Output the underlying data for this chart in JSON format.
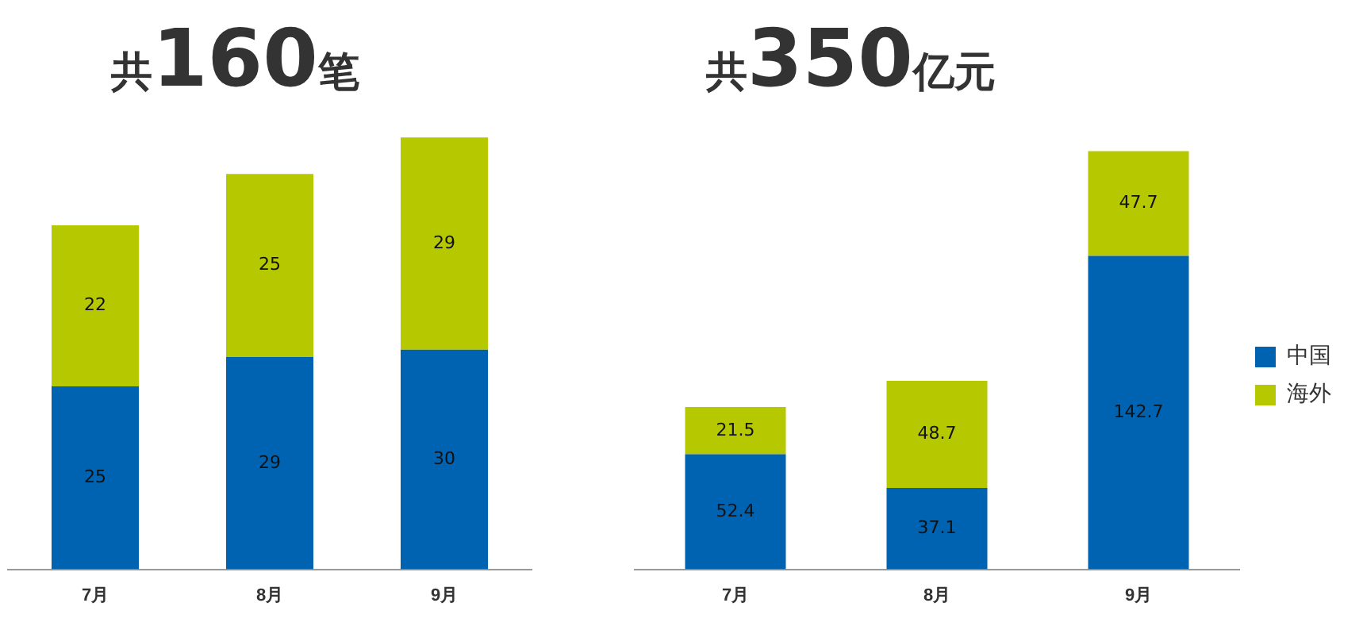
{
  "chart_data": [
    {
      "type": "bar",
      "title": "共160笔",
      "stacked": true,
      "categories": [
        "7月",
        "8月",
        "9月"
      ],
      "tick_labels": "x",
      "data_labels": true,
      "legend": false,
      "series": [
        {
          "color": "#0063b1",
          "values": [
            25,
            29,
            30
          ]
        },
        {
          "color": "#b5c800",
          "values": [
            22,
            25,
            29
          ]
        }
      ]
    },
    {
      "type": "bar",
      "title": "共350亿元",
      "stacked": true,
      "categories": [
        "7月",
        "8月",
        "9月"
      ],
      "tick_labels": "x",
      "data_labels": true,
      "legend": "right",
      "series": [
        {
          "name": "中国",
          "color": "#0063b1",
          "values": [
            52.4,
            37.1,
            142.7
          ]
        },
        {
          "name": "海外",
          "color": "#b5c800",
          "values": [
            21.5,
            48.7,
            47.7
          ]
        }
      ]
    }
  ]
}
